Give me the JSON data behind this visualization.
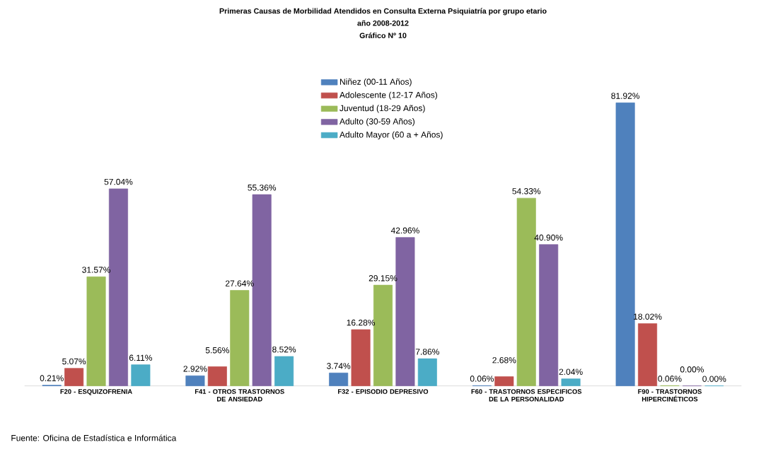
{
  "chart_data": {
    "type": "bar",
    "title": "Primeras Causas de Morbilidad Atendidos en Consulta Externa Psiquiatría por grupo etario",
    "subtitle": "año 2008-2012",
    "annotations": [
      "Gráfico Nº 10",
      "Fuente: Oficina de Estadística e Informática"
    ],
    "categories": [
      "F20 - ESQUIZOFRENIA",
      "F41 - OTROS TRASTORNOS DE ANSIEDAD",
      "F32 - EPISODIO DEPRESIVO",
      "F60 - TRASTORNOS ESPECIFICOS DE LA PERSONALIDAD",
      "F90 - TRASTORNOS HIPERCINÉTICOS"
    ],
    "series": [
      {
        "name": "Niñez (00-11 Años)",
        "color": "#4f81bd",
        "values": [
          0.21,
          2.92,
          3.74,
          0.06,
          81.92
        ],
        "value_labels": [
          "0.21%",
          "2.92%",
          "3.74%",
          "0.06%",
          "81.92%"
        ]
      },
      {
        "name": "Adolescente (12-17 Años)",
        "color": "#c0504d",
        "values": [
          5.07,
          5.56,
          16.28,
          2.68,
          18.02
        ],
        "value_labels": [
          "5.07%",
          "5.56%",
          "16.28%",
          "2.68%",
          "18.02%"
        ]
      },
      {
        "name": "Juventud (18-29 Años)",
        "color": "#9bbb59",
        "values": [
          31.57,
          27.64,
          29.15,
          54.33,
          0.06
        ],
        "value_labels": [
          "31.57%",
          "27.64%",
          "29.15%",
          "54.33%",
          "0.06%"
        ]
      },
      {
        "name": "Adulto (30-59 Años)",
        "color": "#8064a2",
        "values": [
          57.04,
          55.36,
          42.96,
          40.9,
          0.0
        ],
        "value_labels": [
          "57.04%",
          "55.36%",
          "42.96%",
          "40.90%",
          "0.00%"
        ]
      },
      {
        "name": "Adulto Mayor (60 a + Años)",
        "color": "#4bacc6",
        "values": [
          6.11,
          8.52,
          7.86,
          2.04,
          0.0
        ],
        "value_labels": [
          "6.11%",
          "8.52%",
          "7.86%",
          "2.04%",
          "0.00%"
        ]
      }
    ],
    "legend": "top"
  }
}
